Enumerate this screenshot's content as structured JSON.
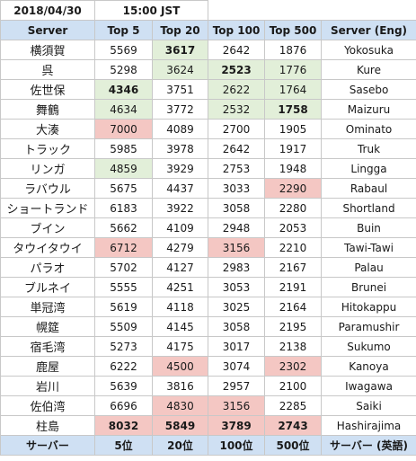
{
  "info": {
    "date": "2018/04/30",
    "time": "15:00 JST"
  },
  "header": [
    "Server",
    "Top 5",
    "Top 20",
    "Top 100",
    "Top 500",
    "Server (Eng)"
  ],
  "footer": [
    "サーバー",
    "5位",
    "20位",
    "100位",
    "500位",
    "サーバー (英語)"
  ],
  "highlight_colors": {
    "green": "#e2efd9",
    "red": "#f4c7c3",
    "header_blue": "#cfe0f3"
  },
  "rows": [
    {
      "server": "横須賀",
      "top5": "5569",
      "top20": "3617",
      "top100": "2642",
      "top500": "1876",
      "eng": "Yokosuka",
      "style": {
        "top5": "",
        "top20": "green bold",
        "top100": "",
        "top500": ""
      }
    },
    {
      "server": "呉",
      "top5": "5298",
      "top20": "3624",
      "top100": "2523",
      "top500": "1776",
      "eng": "Kure",
      "style": {
        "top5": "",
        "top20": "green",
        "top100": "green bold",
        "top500": "green"
      }
    },
    {
      "server": "佐世保",
      "top5": "4346",
      "top20": "3751",
      "top100": "2622",
      "top500": "1764",
      "eng": "Sasebo",
      "style": {
        "top5": "green bold",
        "top20": "",
        "top100": "green",
        "top500": "green"
      }
    },
    {
      "server": "舞鶴",
      "top5": "4634",
      "top20": "3772",
      "top100": "2532",
      "top500": "1758",
      "eng": "Maizuru",
      "style": {
        "top5": "green",
        "top20": "",
        "top100": "green",
        "top500": "green bold"
      }
    },
    {
      "server": "大湊",
      "top5": "7000",
      "top20": "4089",
      "top100": "2700",
      "top500": "1905",
      "eng": "Ominato",
      "style": {
        "top5": "red",
        "top20": "",
        "top100": "",
        "top500": ""
      }
    },
    {
      "server": "トラック",
      "top5": "5985",
      "top20": "3978",
      "top100": "2642",
      "top500": "1917",
      "eng": "Truk",
      "style": {
        "top5": "",
        "top20": "",
        "top100": "",
        "top500": ""
      }
    },
    {
      "server": "リンガ",
      "top5": "4859",
      "top20": "3929",
      "top100": "2753",
      "top500": "1948",
      "eng": "Lingga",
      "style": {
        "top5": "green",
        "top20": "",
        "top100": "",
        "top500": ""
      }
    },
    {
      "server": "ラバウル",
      "top5": "5675",
      "top20": "4437",
      "top100": "3033",
      "top500": "2290",
      "eng": "Rabaul",
      "style": {
        "top5": "",
        "top20": "",
        "top100": "",
        "top500": "red"
      }
    },
    {
      "server": "ショートランド",
      "top5": "6183",
      "top20": "3922",
      "top100": "3058",
      "top500": "2280",
      "eng": "Shortland",
      "style": {
        "top5": "",
        "top20": "",
        "top100": "",
        "top500": ""
      }
    },
    {
      "server": "ブイン",
      "top5": "5662",
      "top20": "4109",
      "top100": "2948",
      "top500": "2053",
      "eng": "Buin",
      "style": {
        "top5": "",
        "top20": "",
        "top100": "",
        "top500": ""
      }
    },
    {
      "server": "タウイタウイ",
      "top5": "6712",
      "top20": "4279",
      "top100": "3156",
      "top500": "2210",
      "eng": "Tawi-Tawi",
      "style": {
        "top5": "red",
        "top20": "",
        "top100": "red",
        "top500": ""
      }
    },
    {
      "server": "パラオ",
      "top5": "5702",
      "top20": "4127",
      "top100": "2983",
      "top500": "2167",
      "eng": "Palau",
      "style": {
        "top5": "",
        "top20": "",
        "top100": "",
        "top500": ""
      }
    },
    {
      "server": "ブルネイ",
      "top5": "5555",
      "top20": "4251",
      "top100": "3053",
      "top500": "2191",
      "eng": "Brunei",
      "style": {
        "top5": "",
        "top20": "",
        "top100": "",
        "top500": ""
      }
    },
    {
      "server": "単冠湾",
      "top5": "5619",
      "top20": "4118",
      "top100": "3025",
      "top500": "2164",
      "eng": "Hitokappu",
      "style": {
        "top5": "",
        "top20": "",
        "top100": "",
        "top500": ""
      }
    },
    {
      "server": "幌筵",
      "top5": "5509",
      "top20": "4145",
      "top100": "3058",
      "top500": "2195",
      "eng": "Paramushir",
      "style": {
        "top5": "",
        "top20": "",
        "top100": "",
        "top500": ""
      }
    },
    {
      "server": "宿毛湾",
      "top5": "5273",
      "top20": "4175",
      "top100": "3017",
      "top500": "2138",
      "eng": "Sukumo",
      "style": {
        "top5": "",
        "top20": "",
        "top100": "",
        "top500": ""
      }
    },
    {
      "server": "鹿屋",
      "top5": "6222",
      "top20": "4500",
      "top100": "3074",
      "top500": "2302",
      "eng": "Kanoya",
      "style": {
        "top5": "",
        "top20": "red",
        "top100": "",
        "top500": "red"
      }
    },
    {
      "server": "岩川",
      "top5": "5639",
      "top20": "3816",
      "top100": "2957",
      "top500": "2100",
      "eng": "Iwagawa",
      "style": {
        "top5": "",
        "top20": "",
        "top100": "",
        "top500": ""
      }
    },
    {
      "server": "佐伯湾",
      "top5": "6696",
      "top20": "4830",
      "top100": "3156",
      "top500": "2285",
      "eng": "Saiki",
      "style": {
        "top5": "",
        "top20": "red",
        "top100": "red",
        "top500": ""
      }
    },
    {
      "server": "柱島",
      "top5": "8032",
      "top20": "5849",
      "top100": "3789",
      "top500": "2743",
      "eng": "Hashirajima",
      "style": {
        "top5": "red bold",
        "top20": "red bold",
        "top100": "red bold",
        "top500": "red bold"
      }
    }
  ]
}
